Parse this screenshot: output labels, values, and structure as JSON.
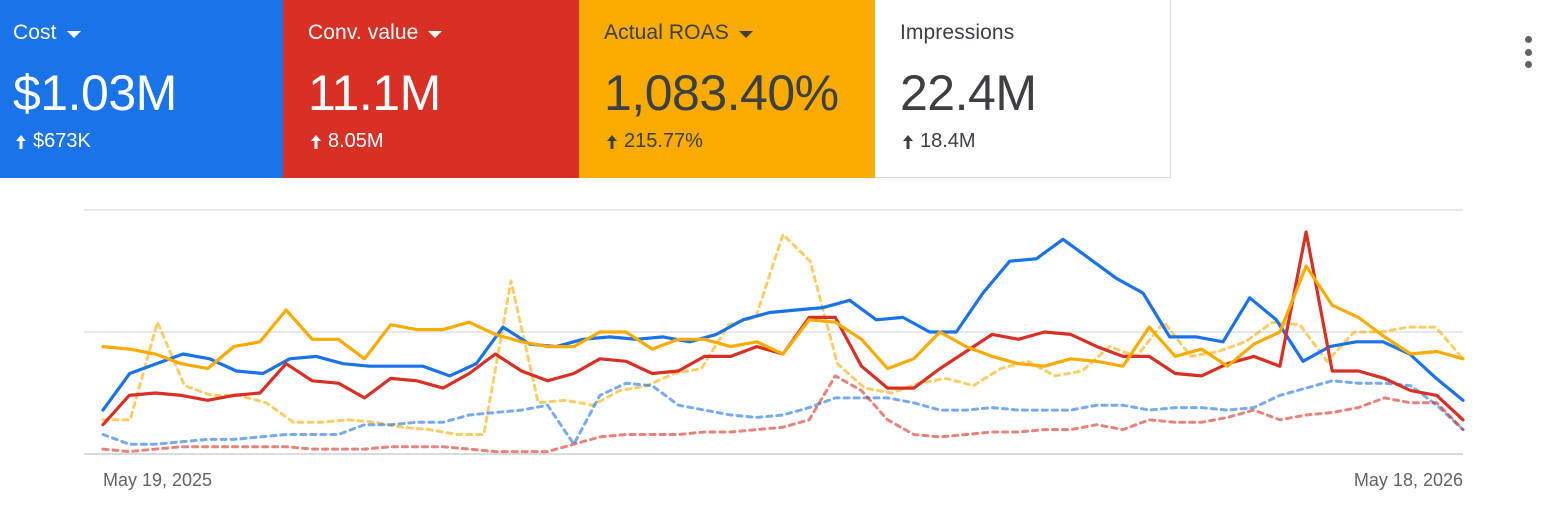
{
  "scorecards": [
    {
      "label": "Cost",
      "value": "$1.03M",
      "delta": "$673K",
      "has_dropdown": true,
      "bg": "#1a73e8",
      "fg": "#ffffff"
    },
    {
      "label": "Conv. value",
      "value": "11.1M",
      "delta": "8.05M",
      "has_dropdown": true,
      "bg": "#d93025",
      "fg": "#ffffff"
    },
    {
      "label": "Actual ROAS",
      "value": "1,083.40%",
      "delta": "215.77%",
      "has_dropdown": true,
      "bg": "#f9ab00",
      "fg": "#3c4043"
    },
    {
      "label": "Impressions",
      "value": "22.4M",
      "delta": "18.4M",
      "has_dropdown": false,
      "bg": "#ffffff",
      "fg": "#3c4043"
    }
  ],
  "menu": {
    "icon": "more-vert-icon"
  },
  "chart_data": {
    "type": "line",
    "x_start": "May 19, 2025",
    "x_end": "May 18, 2026",
    "x_tick_labels": [
      "May 19, 2025",
      "May 18, 2026"
    ],
    "ylim": [
      0,
      100
    ],
    "grid": true,
    "series": [
      {
        "color": "#1a73e8",
        "style": "solid",
        "values": [
          18,
          33,
          37,
          41,
          39,
          34,
          33,
          39,
          40,
          37,
          36,
          36,
          36,
          32,
          37,
          52,
          45,
          44,
          47,
          48,
          47,
          48,
          46,
          49,
          55,
          58,
          59,
          60,
          63,
          55,
          56,
          50,
          50,
          66,
          79,
          80,
          88,
          80,
          72,
          66,
          48,
          48,
          46,
          64,
          55,
          38,
          44,
          46,
          46,
          41,
          31,
          22
        ]
      },
      {
        "color": "#d93025",
        "style": "solid",
        "values": [
          12,
          24,
          25,
          24,
          22,
          24,
          25,
          37,
          30,
          29,
          23,
          31,
          30,
          27,
          33,
          41,
          34,
          30,
          33,
          39,
          38,
          33,
          34,
          40,
          40,
          44,
          41,
          56,
          56,
          36,
          27,
          27,
          35,
          42,
          49,
          47,
          50,
          49,
          44,
          40,
          40,
          33,
          32,
          37,
          40,
          36,
          91,
          34,
          34,
          31,
          26,
          24,
          14
        ]
      },
      {
        "color": "#f9ab00",
        "style": "solid",
        "values": [
          44,
          43,
          41,
          37,
          35,
          44,
          46,
          59,
          47,
          47,
          39,
          53,
          51,
          51,
          54,
          49,
          46,
          44,
          44,
          50,
          50,
          43,
          47,
          47,
          44,
          46,
          41,
          55,
          54,
          47,
          35,
          39,
          50,
          44,
          40,
          37,
          36,
          39,
          38,
          36,
          52,
          40,
          43,
          36,
          45,
          50,
          77,
          61,
          56,
          48,
          41,
          42,
          39
        ]
      },
      {
        "color": "#f9ab00",
        "style": "dashed",
        "values": [
          14,
          14,
          54,
          28,
          24,
          24,
          21,
          13,
          13,
          14,
          13,
          11,
          10,
          8,
          8,
          71,
          21,
          22,
          20,
          26,
          28,
          33,
          35,
          53,
          56,
          90,
          79,
          37,
          27,
          25,
          29,
          31,
          28,
          35,
          38,
          32,
          34,
          44,
          40,
          54,
          40,
          42,
          46,
          54,
          53,
          38,
          50,
          50,
          52,
          52,
          39
        ]
      },
      {
        "color": "#1a73e8",
        "style": "dashed",
        "values": [
          8,
          4,
          4,
          5,
          6,
          6,
          7,
          8,
          8,
          8,
          12,
          12,
          13,
          13,
          16,
          17,
          18,
          20,
          4,
          24,
          29,
          28,
          20,
          18,
          16,
          15,
          16,
          19,
          23,
          23,
          23,
          21,
          18,
          18,
          19,
          18,
          18,
          18,
          20,
          20,
          18,
          19,
          19,
          18,
          19,
          24,
          27,
          30,
          29,
          29,
          28,
          20,
          10
        ]
      },
      {
        "color": "#d93025",
        "style": "dashed",
        "values": [
          2,
          1,
          2,
          3,
          3,
          3,
          3,
          3,
          2,
          2,
          2,
          3,
          3,
          3,
          2,
          1,
          1,
          1,
          4,
          7,
          8,
          8,
          8,
          9,
          9,
          10,
          11,
          14,
          32,
          26,
          14,
          8,
          7,
          8,
          9,
          9,
          10,
          10,
          12,
          10,
          14,
          13,
          13,
          15,
          18,
          14,
          16,
          17,
          19,
          23,
          21,
          21,
          10
        ]
      }
    ]
  }
}
